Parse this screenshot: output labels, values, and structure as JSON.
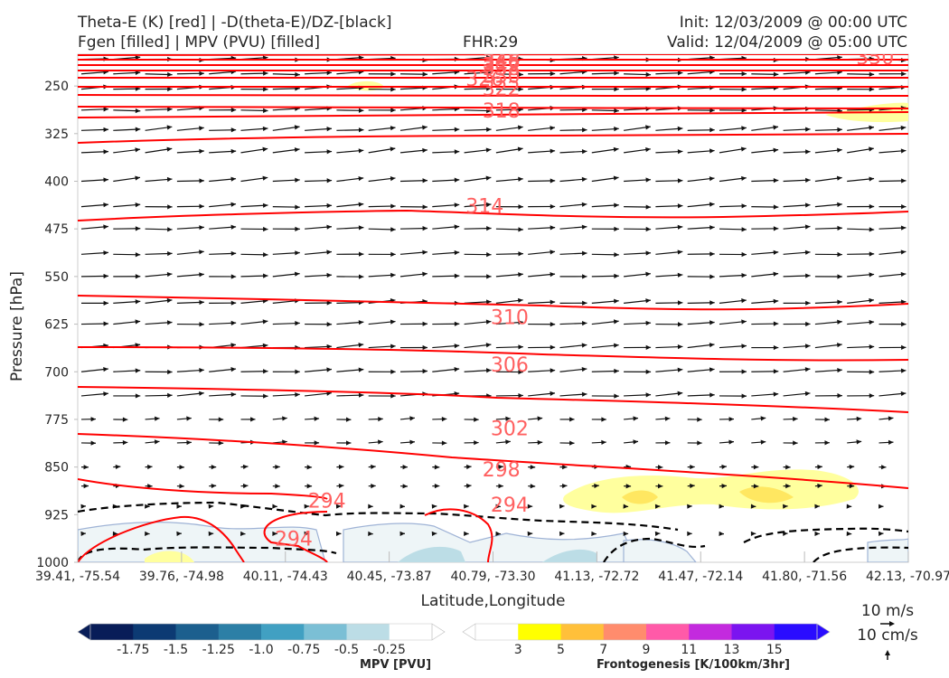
{
  "header": {
    "title_line1": "Theta-E (K) [red] | -D(theta-E)/DZ-[black]",
    "title_line2": "Fgen [filled] | MPV (PVU) [filled]",
    "fhr": "FHR:29",
    "init": "Init: 12/03/2009 @ 00:00 UTC",
    "valid": "Valid: 12/04/2009 @ 05:00 UTC"
  },
  "chart_data": {
    "type": "cross-section",
    "xlabel": "Latitude,Longitude",
    "ylabel": "Pressure [hPa]",
    "x_ticks": [
      "39.41, -75.54",
      "39.76, -74.98",
      "40.11, -74.43",
      "40.45, -73.87",
      "40.79, -73.30",
      "41.13, -72.72",
      "41.47, -72.14",
      "41.80, -71.56",
      "42.13, -70.97"
    ],
    "y_ticks": [
      250,
      325,
      400,
      475,
      550,
      625,
      700,
      775,
      850,
      925,
      1000
    ],
    "ylim": [
      1000,
      200
    ],
    "y_inverted": true,
    "theta_e_color": "#ff0000",
    "theta_e_contours": [
      {
        "label": "294",
        "level": 294,
        "label_pos": [
          0.3,
          904
        ]
      },
      {
        "label": "294",
        "level": 294,
        "label_pos": [
          0.26,
          964
        ]
      },
      {
        "label": "294",
        "level": 294,
        "label_pos": [
          0.52,
          910
        ]
      },
      {
        "label": "298",
        "level": 298,
        "label_pos": [
          0.51,
          855
        ]
      },
      {
        "label": "302",
        "level": 302,
        "label_pos": [
          0.52,
          790
        ]
      },
      {
        "label": "306",
        "level": 306,
        "label_pos": [
          0.52,
          690
        ]
      },
      {
        "label": "310",
        "level": 310,
        "label_pos": [
          0.52,
          615
        ]
      },
      {
        "label": "314",
        "level": 314,
        "label_pos": [
          0.49,
          440
        ]
      },
      {
        "label": "318",
        "level": 318,
        "label_pos": [
          0.51,
          290
        ]
      },
      {
        "label": "322",
        "level": 322,
        "label_pos": [
          0.51,
          255
        ]
      },
      {
        "label": "326",
        "level": 326,
        "label_pos": [
          0.49,
          240
        ]
      },
      {
        "label": "330",
        "level": 330,
        "label_pos": [
          0.51,
          235
        ]
      },
      {
        "label": "338",
        "level": 338,
        "label_pos": [
          0.51,
          223
        ]
      },
      {
        "label": "342",
        "level": 342,
        "label_pos": [
          0.51,
          218
        ]
      },
      {
        "label": "346",
        "level": 346,
        "label_pos": [
          0.51,
          213
        ]
      },
      {
        "label": "348",
        "level": 348,
        "label_pos": [
          0.51,
          209
        ]
      },
      {
        "label": "350",
        "level": 350,
        "label_pos": [
          0.96,
          206
        ]
      }
    ],
    "wind_reference": {
      "horizontal": "10 m/s",
      "vertical": "10 cm/s"
    },
    "colorbars": [
      {
        "name": "MPV [PVU]",
        "ticks": [
          "-1.75",
          "-1.5",
          "-1.25",
          "-1.0",
          "-0.75",
          "-0.5",
          "-0.25"
        ],
        "colors": [
          "#081d58",
          "#0c3a73",
          "#1c5f8e",
          "#2c7fa6",
          "#41a0c2",
          "#7bbfd5",
          "#bcdde6",
          "#ffffff"
        ]
      },
      {
        "name": "Frontogenesis [K/100km/3hr]",
        "ticks": [
          "3",
          "5",
          "7",
          "9",
          "11",
          "13",
          "15"
        ],
        "colors": [
          "#ffffff",
          "#ffff00",
          "#ffc03a",
          "#ff8c6d",
          "#ff5aa8",
          "#c32ade",
          "#7b14f0",
          "#2a0cff"
        ]
      }
    ]
  }
}
